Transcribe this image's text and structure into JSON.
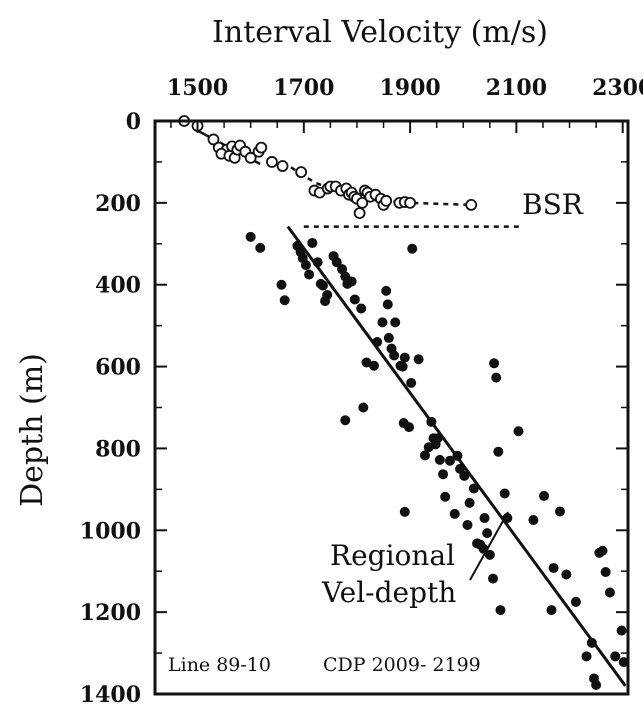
{
  "chart_data": {
    "type": "scatter",
    "title": "Interval Velocity (m/s)",
    "xlabel": "Interval Velocity (m/s)",
    "ylabel": "Depth (m)",
    "xlim": [
      1420,
      2310
    ],
    "ylim": [
      0,
      1400
    ],
    "y_inverted": true,
    "x_axis_position": "top",
    "xticks": [
      1500,
      1700,
      1900,
      2100,
      2300
    ],
    "yticks": [
      0,
      200,
      400,
      600,
      800,
      1000,
      1200,
      1400
    ],
    "grid": false,
    "annotations": {
      "bsr": "BSR",
      "regional_line1": "Regional",
      "regional_line2": "Vel-depth",
      "line_info": "Line 89-10",
      "cdp_info": "CDP 2009- 2199"
    },
    "series": [
      {
        "marker": "open-circle",
        "points": [
          [
            1475,
            0
          ],
          [
            1500,
            12
          ],
          [
            1530,
            45
          ],
          [
            1540,
            65
          ],
          [
            1555,
            70
          ],
          [
            1545,
            80
          ],
          [
            1560,
            85
          ],
          [
            1570,
            90
          ],
          [
            1565,
            62
          ],
          [
            1575,
            70
          ],
          [
            1580,
            60
          ],
          [
            1590,
            75
          ],
          [
            1600,
            90
          ],
          [
            1615,
            75
          ],
          [
            1620,
            65
          ],
          [
            1640,
            100
          ],
          [
            1660,
            110
          ],
          [
            1695,
            125
          ],
          [
            1720,
            170
          ],
          [
            1730,
            175
          ],
          [
            1745,
            165
          ],
          [
            1750,
            160
          ],
          [
            1760,
            160
          ],
          [
            1770,
            170
          ],
          [
            1780,
            165
          ],
          [
            1785,
            180
          ],
          [
            1790,
            175
          ],
          [
            1795,
            185
          ],
          [
            1800,
            190
          ],
          [
            1810,
            200
          ],
          [
            1805,
            225
          ],
          [
            1815,
            170
          ],
          [
            1820,
            175
          ],
          [
            1825,
            185
          ],
          [
            1835,
            180
          ],
          [
            1845,
            190
          ],
          [
            1850,
            205
          ],
          [
            1855,
            195
          ],
          [
            1880,
            200
          ],
          [
            1890,
            198
          ],
          [
            1900,
            200
          ],
          [
            2015,
            205
          ]
        ]
      },
      {
        "marker": "filled-circle",
        "points": [
          [
            1600,
            283
          ],
          [
            1618,
            310
          ],
          [
            1658,
            400
          ],
          [
            1664,
            438
          ],
          [
            1688,
            305
          ],
          [
            1694,
            320
          ],
          [
            1698,
            335
          ],
          [
            1704,
            352
          ],
          [
            1710,
            375
          ],
          [
            1716,
            298
          ],
          [
            1726,
            345
          ],
          [
            1732,
            398
          ],
          [
            1736,
            402
          ],
          [
            1740,
            440
          ],
          [
            1744,
            425
          ],
          [
            1756,
            330
          ],
          [
            1762,
            345
          ],
          [
            1772,
            362
          ],
          [
            1778,
            380
          ],
          [
            1782,
            398
          ],
          [
            1790,
            392
          ],
          [
            1796,
            436
          ],
          [
            1808,
            458
          ],
          [
            1778,
            731
          ],
          [
            1812,
            700
          ],
          [
            1818,
            590
          ],
          [
            1832,
            598
          ],
          [
            1838,
            540
          ],
          [
            1848,
            492
          ],
          [
            1855,
            415
          ],
          [
            1858,
            448
          ],
          [
            1860,
            530
          ],
          [
            1865,
            556
          ],
          [
            1870,
            573
          ],
          [
            1872,
            492
          ],
          [
            1882,
            598
          ],
          [
            1886,
            600
          ],
          [
            1890,
            578
          ],
          [
            1888,
            738
          ],
          [
            1890,
            955
          ],
          [
            1898,
            748
          ],
          [
            1902,
            640
          ],
          [
            1904,
            312
          ],
          [
            1916,
            582
          ],
          [
            1928,
            817
          ],
          [
            1935,
            797
          ],
          [
            1940,
            735
          ],
          [
            1944,
            775
          ],
          [
            1948,
            790
          ],
          [
            1952,
            775
          ],
          [
            1956,
            828
          ],
          [
            1962,
            863
          ],
          [
            1966,
            918
          ],
          [
            1975,
            830
          ],
          [
            1984,
            960
          ],
          [
            1989,
            818
          ],
          [
            1994,
            850
          ],
          [
            2002,
            867
          ],
          [
            2008,
            987
          ],
          [
            2012,
            933
          ],
          [
            2020,
            898
          ],
          [
            2026,
            1032
          ],
          [
            2032,
            1035
          ],
          [
            2038,
            1045
          ],
          [
            2040,
            970
          ],
          [
            2045,
            1007
          ],
          [
            2050,
            1060
          ],
          [
            2056,
            1118
          ],
          [
            2058,
            592
          ],
          [
            2062,
            627
          ],
          [
            2066,
            808
          ],
          [
            2070,
            1195
          ],
          [
            2078,
            910
          ],
          [
            2083,
            970
          ],
          [
            2104,
            758
          ],
          [
            2132,
            975
          ],
          [
            2152,
            916
          ],
          [
            2166,
            1195
          ],
          [
            2170,
            1092
          ],
          [
            2182,
            954
          ],
          [
            2194,
            1108
          ],
          [
            2212,
            1175
          ],
          [
            2232,
            1308
          ],
          [
            2242,
            1275
          ],
          [
            2246,
            1362
          ],
          [
            2250,
            1378
          ],
          [
            2256,
            1055
          ],
          [
            2262,
            1050
          ],
          [
            2268,
            1102
          ],
          [
            2276,
            1152
          ],
          [
            2286,
            1308
          ],
          [
            2298,
            1245
          ],
          [
            2302,
            1322
          ]
        ]
      }
    ],
    "lines": [
      {
        "style": "dashed",
        "points": [
          [
            1495,
            20
          ],
          [
            1625,
            110
          ]
        ]
      },
      {
        "style": "dotted",
        "points": [
          [
            1660,
            100
          ],
          [
            1720,
            150
          ],
          [
            1800,
            190
          ],
          [
            1900,
            200
          ],
          [
            2015,
            205
          ]
        ]
      },
      {
        "style": "dotted",
        "points": [
          [
            1700,
            258
          ],
          [
            2110,
            258
          ]
        ]
      },
      {
        "style": "solid",
        "points": [
          [
            1670,
            258
          ],
          [
            2305,
            1380
          ]
        ]
      }
    ]
  }
}
